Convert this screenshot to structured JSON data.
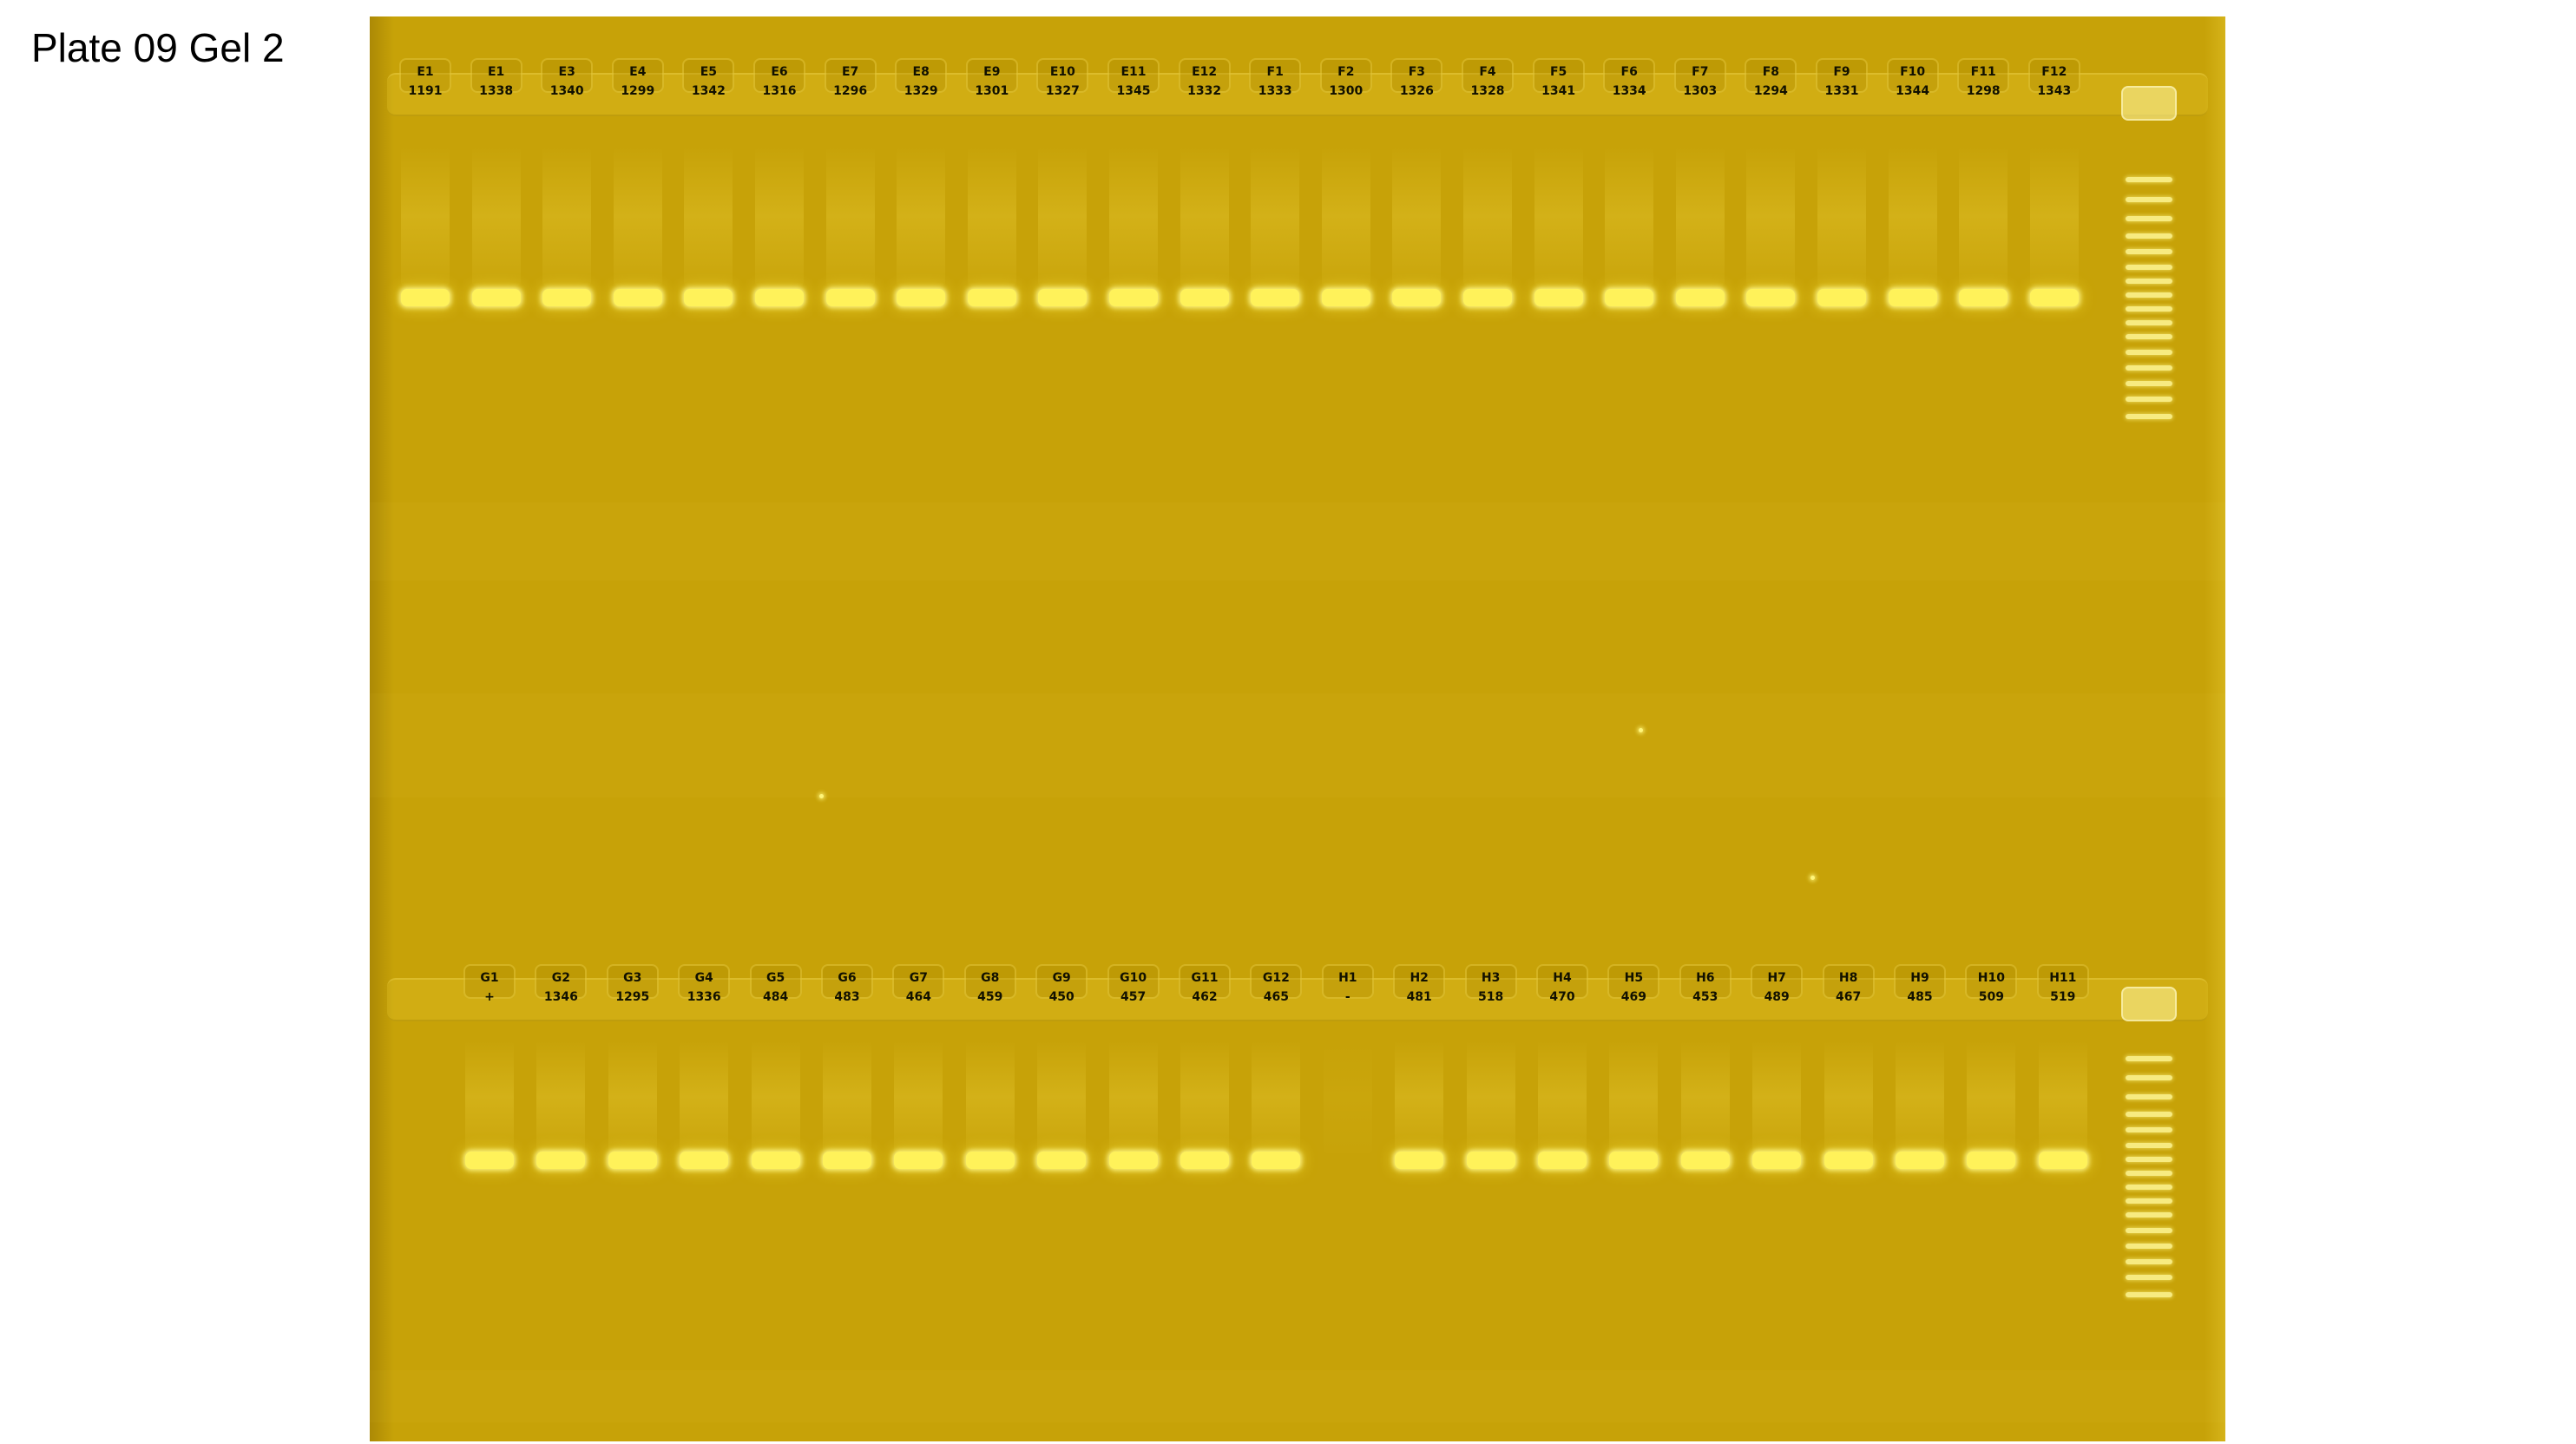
{
  "title": "Plate 09 Gel 2",
  "top_row": {
    "lanes": [
      {
        "well": "E1",
        "sample": "1191",
        "band": "strong"
      },
      {
        "well": "E1",
        "sample": "1338",
        "band": "strong"
      },
      {
        "well": "E3",
        "sample": "1340",
        "band": "strong"
      },
      {
        "well": "E4",
        "sample": "1299",
        "band": "strong"
      },
      {
        "well": "E5",
        "sample": "1342",
        "band": "strong"
      },
      {
        "well": "E6",
        "sample": "1316",
        "band": "strong"
      },
      {
        "well": "E7",
        "sample": "1296",
        "band": "strong"
      },
      {
        "well": "E8",
        "sample": "1329",
        "band": "strong"
      },
      {
        "well": "E9",
        "sample": "1301",
        "band": "strong"
      },
      {
        "well": "E10",
        "sample": "1327",
        "band": "strong"
      },
      {
        "well": "E11",
        "sample": "1345",
        "band": "strong"
      },
      {
        "well": "E12",
        "sample": "1332",
        "band": "strong"
      },
      {
        "well": "F1",
        "sample": "1333",
        "band": "strong"
      },
      {
        "well": "F2",
        "sample": "1300",
        "band": "strong"
      },
      {
        "well": "F3",
        "sample": "1326",
        "band": "strong"
      },
      {
        "well": "F4",
        "sample": "1328",
        "band": "strong"
      },
      {
        "well": "F5",
        "sample": "1341",
        "band": "strong"
      },
      {
        "well": "F6",
        "sample": "1334",
        "band": "strong"
      },
      {
        "well": "F7",
        "sample": "1303",
        "band": "strong"
      },
      {
        "well": "F8",
        "sample": "1294",
        "band": "strong"
      },
      {
        "well": "F9",
        "sample": "1331",
        "band": "strong"
      },
      {
        "well": "F10",
        "sample": "1344",
        "band": "strong"
      },
      {
        "well": "F11",
        "sample": "1298",
        "band": "strong"
      },
      {
        "well": "F12",
        "sample": "1343",
        "band": "strong"
      }
    ]
  },
  "bottom_row": {
    "lanes": [
      {
        "well": "G1",
        "sample": "+",
        "band": "strong"
      },
      {
        "well": "G2",
        "sample": "1346",
        "band": "strong"
      },
      {
        "well": "G3",
        "sample": "1295",
        "band": "strong"
      },
      {
        "well": "G4",
        "sample": "1336",
        "band": "strong"
      },
      {
        "well": "G5",
        "sample": "484",
        "band": "strong"
      },
      {
        "well": "G6",
        "sample": "483",
        "band": "strong"
      },
      {
        "well": "G7",
        "sample": "464",
        "band": "strong"
      },
      {
        "well": "G8",
        "sample": "459",
        "band": "strong"
      },
      {
        "well": "G9",
        "sample": "450",
        "band": "strong"
      },
      {
        "well": "G10",
        "sample": "457",
        "band": "strong"
      },
      {
        "well": "G11",
        "sample": "462",
        "band": "strong"
      },
      {
        "well": "G12",
        "sample": "465",
        "band": "strong"
      },
      {
        "well": "H1",
        "sample": "-",
        "band": "none"
      },
      {
        "well": "H2",
        "sample": "481",
        "band": "strong"
      },
      {
        "well": "H3",
        "sample": "518",
        "band": "strong"
      },
      {
        "well": "H4",
        "sample": "470",
        "band": "strong"
      },
      {
        "well": "H5",
        "sample": "469",
        "band": "strong"
      },
      {
        "well": "H6",
        "sample": "453",
        "band": "strong"
      },
      {
        "well": "H7",
        "sample": "489",
        "band": "strong"
      },
      {
        "well": "H8",
        "sample": "467",
        "band": "strong"
      },
      {
        "well": "H9",
        "sample": "485",
        "band": "strong"
      },
      {
        "well": "H10",
        "sample": "509",
        "band": "strong"
      },
      {
        "well": "H11",
        "sample": "519",
        "band": "strong"
      }
    ]
  },
  "colors": {
    "gel": "#c7a208",
    "band": "#fff25a",
    "label": "#111000"
  }
}
